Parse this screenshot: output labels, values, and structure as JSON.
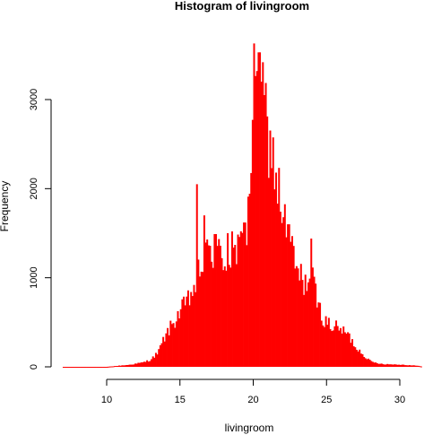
{
  "chart_data": {
    "type": "bar",
    "subtype": "histogram",
    "title": "Histogram of livingroom",
    "xlabel": "livingroom",
    "ylabel": "Frequency",
    "xlim": [
      7.0,
      31.5
    ],
    "ylim": [
      0,
      3650
    ],
    "bin_width": 0.1,
    "x_ticks": [
      10,
      15,
      20,
      25,
      30
    ],
    "y_ticks": [
      0,
      1000,
      2000,
      3000
    ],
    "bar_color": "#ff0000",
    "grid": false,
    "legend": "none",
    "profile": [
      [
        7.0,
        0
      ],
      [
        10.0,
        0
      ],
      [
        10.5,
        8
      ],
      [
        11.0,
        15
      ],
      [
        11.5,
        22
      ],
      [
        12.0,
        35
      ],
      [
        12.5,
        50
      ],
      [
        13.0,
        80
      ],
      [
        13.5,
        160
      ],
      [
        14.0,
        350
      ],
      [
        14.5,
        480
      ],
      [
        15.0,
        620
      ],
      [
        15.5,
        720
      ],
      [
        16.0,
        900
      ],
      [
        16.5,
        1150
      ],
      [
        17.0,
        1300
      ],
      [
        17.5,
        1280
      ],
      [
        18.0,
        1200
      ],
      [
        18.5,
        1250
      ],
      [
        19.0,
        1300
      ],
      [
        19.5,
        1450
      ],
      [
        20.0,
        2600
      ],
      [
        20.5,
        3200
      ],
      [
        21.0,
        2600
      ],
      [
        21.5,
        2200
      ],
      [
        22.0,
        1700
      ],
      [
        22.5,
        1400
      ],
      [
        23.0,
        1050
      ],
      [
        23.5,
        950
      ],
      [
        24.0,
        1000
      ],
      [
        24.5,
        650
      ],
      [
        25.0,
        480
      ],
      [
        25.5,
        450
      ],
      [
        26.0,
        420
      ],
      [
        26.5,
        350
      ],
      [
        27.0,
        220
      ],
      [
        27.5,
        140
      ],
      [
        28.0,
        60
      ],
      [
        28.5,
        40
      ],
      [
        29.0,
        30
      ],
      [
        30.0,
        25
      ],
      [
        31.0,
        15
      ],
      [
        31.5,
        5
      ]
    ],
    "spikes": [
      {
        "x": 16.2,
        "value": 2050
      },
      {
        "x": 16.7,
        "value": 1700
      },
      {
        "x": 17.0,
        "value": 1580
      },
      {
        "x": 17.4,
        "value": 1490
      },
      {
        "x": 18.3,
        "value": 1500
      },
      {
        "x": 18.6,
        "value": 1520
      },
      {
        "x": 19.4,
        "value": 1620
      },
      {
        "x": 19.7,
        "value": 1910
      },
      {
        "x": 20.1,
        "value": 3630
      },
      {
        "x": 20.3,
        "value": 3320
      },
      {
        "x": 20.4,
        "value": 3530
      },
      {
        "x": 20.6,
        "value": 3200
      },
      {
        "x": 20.8,
        "value": 3050
      },
      {
        "x": 21.3,
        "value": 2230
      },
      {
        "x": 21.6,
        "value": 2180
      },
      {
        "x": 22.0,
        "value": 1840
      },
      {
        "x": 22.4,
        "value": 1600
      },
      {
        "x": 24.0,
        "value": 1440
      },
      {
        "x": 25.2,
        "value": 550
      }
    ]
  }
}
